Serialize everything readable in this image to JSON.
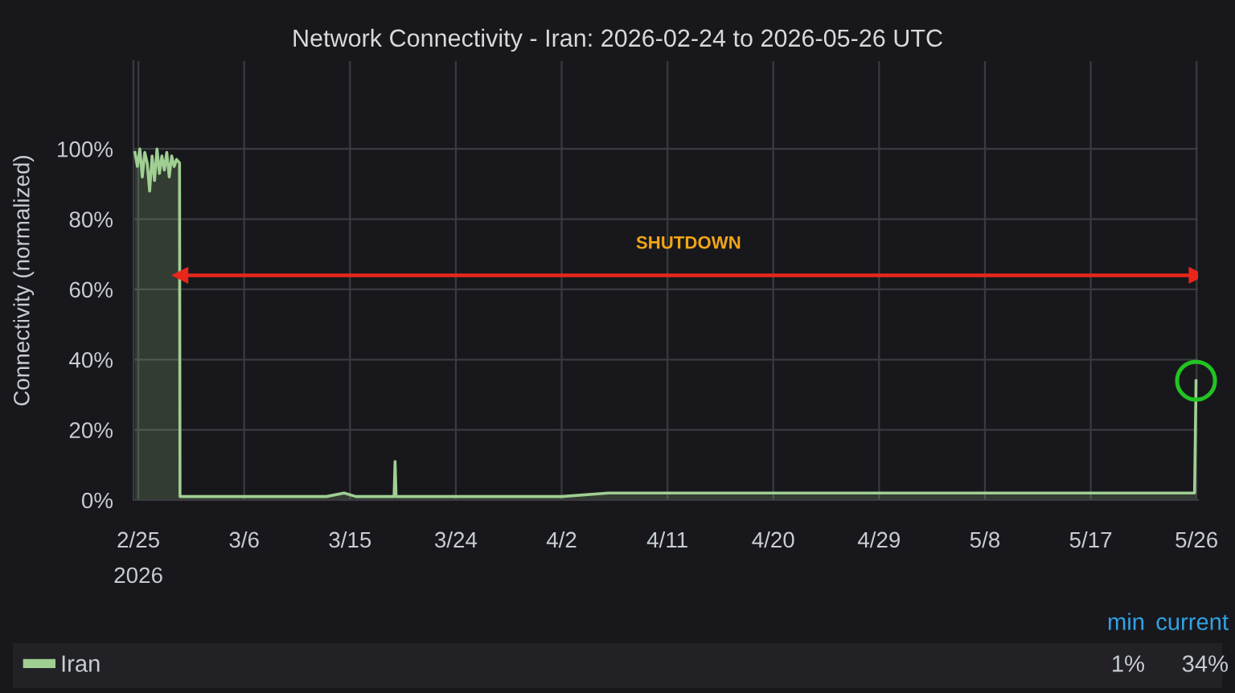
{
  "chart_data": {
    "type": "area",
    "title": "Network Connectivity - Iran: 2026-02-24 to 2026-05-26 UTC",
    "ylabel": "Connectivity (normalized)",
    "x": [
      "2026-02-24T17:00",
      "2026-02-24T22:00",
      "2026-02-25T03:00",
      "2026-02-25T08:00",
      "2026-02-25T13:00",
      "2026-02-25T18:00",
      "2026-02-25T23:00",
      "2026-02-26T04:00",
      "2026-02-26T09:00",
      "2026-02-26T14:00",
      "2026-02-26T19:00",
      "2026-02-27T00:00",
      "2026-02-27T05:00",
      "2026-02-27T10:00",
      "2026-02-27T15:00",
      "2026-02-27T20:00",
      "2026-02-28T01:00",
      "2026-02-28T06:00",
      "2026-02-28T12:00",
      "2026-02-28T13:00",
      "2026-03-01T00:00",
      "2026-03-03T00:00",
      "2026-03-05T00:00",
      "2026-03-07T00:00",
      "2026-03-09T00:00",
      "2026-03-11T00:00",
      "2026-03-13T00:00",
      "2026-03-14T12:00",
      "2026-03-15T12:00",
      "2026-03-17T00:00",
      "2026-03-18T18:00",
      "2026-03-18T20:00",
      "2026-03-18T22:00",
      "2026-03-21T00:00",
      "2026-03-25T00:00",
      "2026-03-29T00:00",
      "2026-04-02T00:00",
      "2026-04-06T00:00",
      "2026-04-10T00:00",
      "2026-04-15T00:00",
      "2026-04-20T00:00",
      "2026-04-25T00:00",
      "2026-04-30T00:00",
      "2026-05-05T00:00",
      "2026-05-10T00:00",
      "2026-05-15T00:00",
      "2026-05-20T00:00",
      "2026-05-25T20:00",
      "2026-05-25T23:00"
    ],
    "series": [
      {
        "name": "Iran",
        "color": "#9fcf92",
        "values": [
          99,
          95,
          100,
          92,
          99,
          96,
          88,
          98,
          91,
          100,
          93,
          98,
          94,
          99,
          92,
          98,
          95,
          97,
          96,
          1,
          1,
          1,
          1,
          1,
          1,
          1,
          1,
          2,
          1,
          1,
          1,
          11,
          1,
          1,
          1,
          1,
          1,
          2,
          2,
          2,
          2,
          2,
          2,
          2,
          2,
          2,
          2,
          2,
          34
        ]
      },
      {
        "type": "line",
        "color": "#e8261c",
        "marker": "triangle",
        "x": [
          "2026-02-28T14:00",
          "2026-05-26T00:00"
        ],
        "values": [
          64,
          64
        ]
      }
    ],
    "xlim": [
      "2026-02-24T14:00",
      "2026-05-26T03:00"
    ],
    "xticks": [
      {
        "value": "2026-02-25",
        "label": "2/25\n2026"
      },
      {
        "value": "2026-03-06",
        "label": "3/6"
      },
      {
        "value": "2026-03-15",
        "label": "3/15"
      },
      {
        "value": "2026-03-24",
        "label": "3/24"
      },
      {
        "value": "2026-04-02",
        "label": "4/2"
      },
      {
        "value": "2026-04-11",
        "label": "4/11"
      },
      {
        "value": "2026-04-20",
        "label": "4/20"
      },
      {
        "value": "2026-04-29",
        "label": "4/29"
      },
      {
        "value": "2026-05-08",
        "label": "5/8"
      },
      {
        "value": "2026-05-17",
        "label": "5/17"
      },
      {
        "value": "2026-05-26",
        "label": "5/26"
      }
    ],
    "ylim": [
      0,
      125
    ],
    "yticks": [
      {
        "value": 0,
        "label": "0%"
      },
      {
        "value": 20,
        "label": "20%"
      },
      {
        "value": 40,
        "label": "40%"
      },
      {
        "value": 60,
        "label": "60%"
      },
      {
        "value": 80,
        "label": "80%"
      },
      {
        "value": 100,
        "label": "100%"
      }
    ],
    "annotations": [
      "SHUTDOWN",
      "min",
      "current",
      "1%",
      "34%"
    ],
    "grid": true,
    "legend": "bottom",
    "marker": "none",
    "line_style": "solid"
  }
}
